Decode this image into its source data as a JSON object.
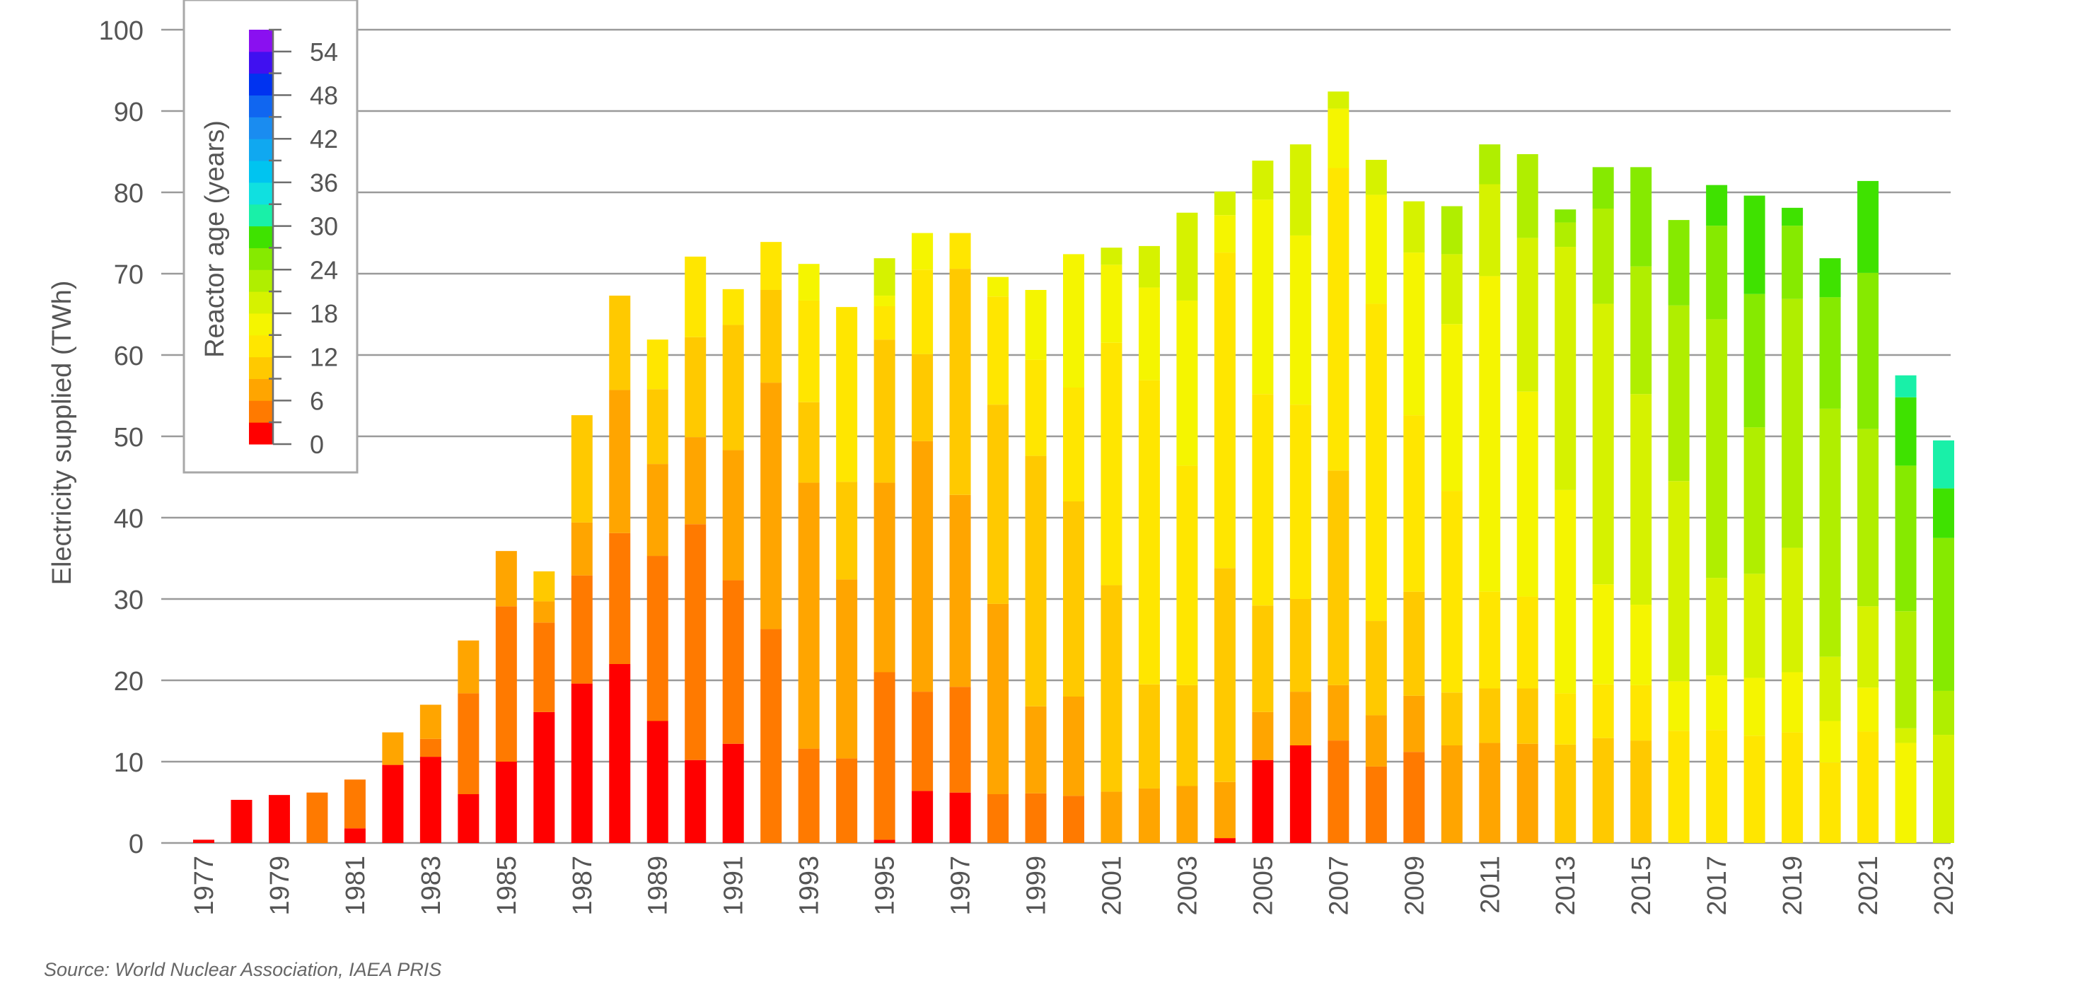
{
  "source": "Source: World Nuclear Association, IAEA PRIS",
  "colors": {
    "grid": "#9a9a9a",
    "axis": "#6e6e6e",
    "text": "#555555",
    "legend_border": "#a8a8a8",
    "age_palette": [
      "#ff0000",
      "#ff7a00",
      "#ffa500",
      "#ffc900",
      "#ffe600",
      "#f5f500",
      "#d6f200",
      "#b0ee00",
      "#86ea00",
      "#3fe200",
      "#19f0a8",
      "#10e0e0",
      "#00c4f0",
      "#10a8f0",
      "#1a8cf0",
      "#1066f0",
      "#0033f0",
      "#4010f0",
      "#8a10f0",
      "#b020f0"
    ]
  },
  "chart_data": {
    "type": "bar",
    "stacked": true,
    "ylabel": "Electricity supplied (TWh)",
    "xlabel": "",
    "ylim": [
      0,
      100
    ],
    "yticks": [
      0,
      10,
      20,
      30,
      40,
      50,
      60,
      70,
      80,
      90,
      100
    ],
    "grid": true,
    "categories": [
      "1977",
      "1978",
      "1979",
      "1980",
      "1981",
      "1982",
      "1983",
      "1984",
      "1985",
      "1986",
      "1987",
      "1988",
      "1989",
      "1990",
      "1991",
      "1992",
      "1993",
      "1994",
      "1995",
      "1996",
      "1997",
      "1998",
      "1999",
      "2000",
      "2001",
      "2002",
      "2003",
      "2004",
      "2005",
      "2006",
      "2007",
      "2008",
      "2009",
      "2010",
      "2011",
      "2012",
      "2013",
      "2014",
      "2015",
      "2016",
      "2017",
      "2018",
      "2019",
      "2020",
      "2021",
      "2022",
      "2023"
    ],
    "xtick_labels": [
      "1977",
      "",
      "1979",
      "",
      "1981",
      "",
      "1983",
      "",
      "1985",
      "",
      "1987",
      "",
      "1989",
      "",
      "1991",
      "",
      "1993",
      "",
      "1995",
      "",
      "1997",
      "",
      "1999",
      "",
      "2001",
      "",
      "2003",
      "",
      "2005",
      "",
      "2007",
      "",
      "2009",
      "",
      "2011",
      "",
      "2013",
      "",
      "2015",
      "",
      "2017",
      "",
      "2019",
      "",
      "2021",
      "",
      "2023"
    ],
    "bars": [
      [
        [
          0,
          0.4
        ]
      ],
      [
        [
          0,
          5.3
        ]
      ],
      [
        [
          0,
          5.9
        ]
      ],
      [
        [
          3,
          6.2
        ]
      ],
      [
        [
          0,
          1.8
        ],
        [
          3,
          6.0
        ]
      ],
      [
        [
          0,
          9.6
        ],
        [
          6,
          4.0
        ]
      ],
      [
        [
          0,
          10.6
        ],
        [
          3,
          2.2
        ],
        [
          6,
          4.2
        ]
      ],
      [
        [
          0,
          6.0
        ],
        [
          3,
          12.4
        ],
        [
          6,
          6.5
        ]
      ],
      [
        [
          0,
          10.0
        ],
        [
          3,
          19.1
        ],
        [
          6,
          6.8
        ]
      ],
      [
        [
          0,
          16.1
        ],
        [
          3,
          11.0
        ],
        [
          6,
          2.6
        ],
        [
          9,
          3.7
        ]
      ],
      [
        [
          0,
          19.6
        ],
        [
          3,
          13.3
        ],
        [
          6,
          6.5
        ],
        [
          9,
          13.2
        ]
      ],
      [
        [
          0,
          22.0
        ],
        [
          3,
          16.1
        ],
        [
          6,
          17.6
        ],
        [
          9,
          11.6
        ]
      ],
      [
        [
          0,
          15.0
        ],
        [
          3,
          20.3
        ],
        [
          6,
          11.3
        ],
        [
          9,
          9.2
        ],
        [
          12,
          6.1
        ]
      ],
      [
        [
          0,
          10.2
        ],
        [
          3,
          29.0
        ],
        [
          6,
          10.7
        ],
        [
          9,
          12.3
        ],
        [
          12,
          9.9
        ]
      ],
      [
        [
          0,
          12.2
        ],
        [
          3,
          20.1
        ],
        [
          6,
          16.0
        ],
        [
          9,
          15.4
        ],
        [
          12,
          4.4
        ]
      ],
      [
        [
          3,
          26.3
        ],
        [
          6,
          30.3
        ],
        [
          9,
          11.4
        ],
        [
          12,
          5.9
        ]
      ],
      [
        [
          3,
          11.6
        ],
        [
          6,
          32.7
        ],
        [
          9,
          9.9
        ],
        [
          12,
          12.5
        ],
        [
          15,
          4.5
        ]
      ],
      [
        [
          3,
          10.4
        ],
        [
          6,
          22.0
        ],
        [
          9,
          12.0
        ],
        [
          12,
          21.5
        ]
      ],
      [
        [
          0,
          0.4
        ],
        [
          3,
          20.6
        ],
        [
          6,
          23.3
        ],
        [
          9,
          17.6
        ],
        [
          12,
          4.1
        ],
        [
          15,
          1.3
        ],
        [
          18,
          4.6
        ]
      ],
      [
        [
          0,
          6.4
        ],
        [
          3,
          12.2
        ],
        [
          6,
          30.8
        ],
        [
          9,
          10.7
        ],
        [
          12,
          10.4
        ],
        [
          15,
          4.5
        ]
      ],
      [
        [
          0,
          6.2
        ],
        [
          3,
          13.0
        ],
        [
          6,
          23.6
        ],
        [
          9,
          27.8
        ],
        [
          12,
          4.4
        ]
      ],
      [
        [
          3,
          6.0
        ],
        [
          6,
          23.4
        ],
        [
          9,
          24.5
        ],
        [
          12,
          13.3
        ],
        [
          15,
          2.4
        ]
      ],
      [
        [
          3,
          6.1
        ],
        [
          6,
          10.7
        ],
        [
          9,
          30.8
        ],
        [
          12,
          11.8
        ],
        [
          15,
          8.6
        ]
      ],
      [
        [
          3,
          5.8
        ],
        [
          6,
          12.2
        ],
        [
          9,
          24.0
        ],
        [
          12,
          14.0
        ],
        [
          15,
          16.4
        ]
      ],
      [
        [
          6,
          6.3
        ],
        [
          9,
          25.4
        ],
        [
          12,
          29.8
        ],
        [
          15,
          9.6
        ],
        [
          18,
          2.1
        ]
      ],
      [
        [
          6,
          6.7
        ],
        [
          9,
          12.8
        ],
        [
          12,
          37.4
        ],
        [
          15,
          11.4
        ],
        [
          18,
          5.1
        ]
      ],
      [
        [
          6,
          7.0
        ],
        [
          9,
          12.4
        ],
        [
          12,
          27.0
        ],
        [
          15,
          20.3
        ],
        [
          18,
          10.8
        ]
      ],
      [
        [
          0,
          0.6
        ],
        [
          6,
          6.9
        ],
        [
          9,
          26.3
        ],
        [
          12,
          38.8
        ],
        [
          15,
          4.6
        ],
        [
          18,
          2.9
        ]
      ],
      [
        [
          0,
          10.2
        ],
        [
          6,
          5.9
        ],
        [
          9,
          13.1
        ],
        [
          12,
          26.0
        ],
        [
          15,
          23.9
        ],
        [
          18,
          4.8
        ]
      ],
      [
        [
          0,
          12.0
        ],
        [
          6,
          6.6
        ],
        [
          9,
          11.4
        ],
        [
          12,
          23.9
        ],
        [
          15,
          20.8
        ],
        [
          18,
          11.2
        ]
      ],
      [
        [
          3,
          12.6
        ],
        [
          6,
          6.8
        ],
        [
          9,
          26.4
        ],
        [
          12,
          37.2
        ],
        [
          15,
          7.3
        ],
        [
          18,
          2.1
        ]
      ],
      [
        [
          3,
          9.4
        ],
        [
          6,
          6.3
        ],
        [
          9,
          11.6
        ],
        [
          12,
          39.0
        ],
        [
          15,
          13.4
        ],
        [
          18,
          4.3
        ]
      ],
      [
        [
          3,
          11.2
        ],
        [
          6,
          6.9
        ],
        [
          9,
          12.8
        ],
        [
          12,
          21.7
        ],
        [
          15,
          20.0
        ],
        [
          18,
          6.3
        ]
      ],
      [
        [
          6,
          12.0
        ],
        [
          9,
          6.5
        ],
        [
          12,
          24.8
        ],
        [
          15,
          20.5
        ],
        [
          18,
          8.6
        ],
        [
          21,
          5.9
        ]
      ],
      [
        [
          6,
          12.3
        ],
        [
          9,
          6.7
        ],
        [
          12,
          11.9
        ],
        [
          15,
          38.8
        ],
        [
          18,
          11.3
        ],
        [
          21,
          4.9
        ]
      ],
      [
        [
          6,
          12.2
        ],
        [
          9,
          6.8
        ],
        [
          12,
          11.3
        ],
        [
          15,
          25.2
        ],
        [
          18,
          18.9
        ],
        [
          21,
          10.3
        ]
      ],
      [
        [
          9,
          12.1
        ],
        [
          12,
          6.3
        ],
        [
          15,
          25.0
        ],
        [
          18,
          29.9
        ],
        [
          21,
          3.0
        ],
        [
          24,
          1.6
        ]
      ],
      [
        [
          9,
          12.9
        ],
        [
          12,
          6.6
        ],
        [
          15,
          12.3
        ],
        [
          18,
          34.5
        ],
        [
          21,
          11.7
        ],
        [
          24,
          5.1
        ]
      ],
      [
        [
          9,
          12.6
        ],
        [
          12,
          6.8
        ],
        [
          15,
          9.9
        ],
        [
          18,
          25.9
        ],
        [
          21,
          15.7
        ],
        [
          24,
          12.2
        ]
      ],
      [
        [
          12,
          13.8
        ],
        [
          15,
          6.1
        ],
        [
          18,
          24.6
        ],
        [
          21,
          21.6
        ],
        [
          24,
          10.5
        ]
      ],
      [
        [
          12,
          13.9
        ],
        [
          15,
          6.7
        ],
        [
          18,
          12.0
        ],
        [
          21,
          31.8
        ],
        [
          24,
          11.5
        ],
        [
          27,
          5.0
        ]
      ],
      [
        [
          12,
          13.2
        ],
        [
          15,
          7.1
        ],
        [
          18,
          12.8
        ],
        [
          21,
          18.0
        ],
        [
          24,
          16.4
        ],
        [
          27,
          12.1
        ]
      ],
      [
        [
          12,
          13.6
        ],
        [
          15,
          7.4
        ],
        [
          18,
          15.3
        ],
        [
          21,
          30.6
        ],
        [
          24,
          9.0
        ],
        [
          27,
          2.2
        ]
      ],
      [
        [
          12,
          9.9
        ],
        [
          15,
          5.1
        ],
        [
          18,
          7.9
        ],
        [
          21,
          30.5
        ],
        [
          24,
          13.7
        ],
        [
          27,
          4.8
        ]
      ],
      [
        [
          12,
          13.7
        ],
        [
          15,
          5.4
        ],
        [
          18,
          10.0
        ],
        [
          21,
          21.8
        ],
        [
          24,
          19.2
        ],
        [
          27,
          11.3
        ]
      ],
      [
        [
          15,
          12.3
        ],
        [
          18,
          1.8
        ],
        [
          21,
          14.4
        ],
        [
          24,
          17.9
        ],
        [
          27,
          8.4
        ],
        [
          30,
          2.7
        ]
      ],
      [
        [
          18,
          13.3
        ],
        [
          21,
          5.4
        ],
        [
          24,
          18.8
        ],
        [
          27,
          6.1
        ],
        [
          30,
          5.9
        ]
      ]
    ],
    "legend": {
      "title": "Reactor age (years)",
      "labels": [
        "0",
        "6",
        "12",
        "18",
        "24",
        "30",
        "36",
        "42",
        "48",
        "54"
      ],
      "placement": "top-left"
    }
  }
}
